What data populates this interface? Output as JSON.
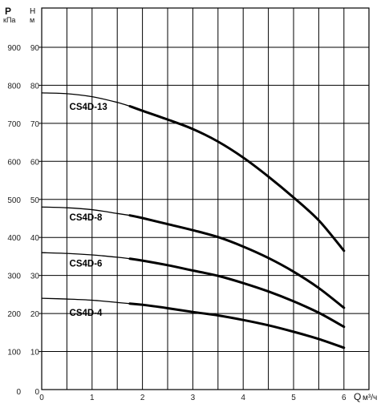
{
  "chart_data": {
    "type": "line",
    "xlabel": "Q",
    "xlabel_unit": "м³/ч",
    "y_left_label": "P",
    "y_left_unit": "кПа",
    "y_right_label": "Н",
    "y_right_unit": "м",
    "xlim": [
      0,
      6.5
    ],
    "ylim_head": [
      0,
      100
    ],
    "ylim_pressure": [
      0,
      1000
    ],
    "x_ticks": [
      "0",
      "1",
      "2",
      "3",
      "4",
      "5",
      "6"
    ],
    "y_head_ticks": [
      "10",
      "20",
      "30",
      "40",
      "50",
      "60",
      "70",
      "80",
      "90"
    ],
    "y_pressure_ticks": [
      "100",
      "200",
      "300",
      "400",
      "500",
      "600",
      "700",
      "800",
      "900"
    ],
    "grid": true,
    "series": [
      {
        "name": "CS4D-13",
        "x": [
          0,
          0.5,
          1,
          1.5,
          1.75,
          2,
          2.5,
          3,
          3.5,
          4,
          4.5,
          5,
          5.5,
          6
        ],
        "y": [
          78,
          77.8,
          77,
          75.5,
          74.5,
          73.3,
          71,
          68.5,
          65.2,
          61,
          56,
          50.5,
          44.5,
          36.5
        ],
        "thin_until_x": 1.75
      },
      {
        "name": "CS4D-8",
        "x": [
          0,
          0.5,
          1,
          1.5,
          1.75,
          2,
          2.5,
          3,
          3.5,
          4,
          4.5,
          5,
          5.5,
          6
        ],
        "y": [
          48,
          47.8,
          47.3,
          46.3,
          45.8,
          45.1,
          43.5,
          41.9,
          40.1,
          37.6,
          34.6,
          31,
          26.7,
          21.5
        ],
        "thin_until_x": 1.75
      },
      {
        "name": "CS4D-6",
        "x": [
          0,
          0.5,
          1,
          1.5,
          1.75,
          2,
          2.5,
          3,
          3.5,
          4,
          4.5,
          5,
          5.5,
          6
        ],
        "y": [
          36,
          35.8,
          35.4,
          34.8,
          34.4,
          33.9,
          32.7,
          31.3,
          29.9,
          28,
          25.8,
          23.2,
          20.2,
          16.5
        ],
        "thin_until_x": 1.75
      },
      {
        "name": "CS4D-4",
        "x": [
          0,
          0.5,
          1,
          1.5,
          1.75,
          2,
          2.5,
          3,
          3.5,
          4,
          4.5,
          5,
          5.5,
          6
        ],
        "y": [
          24,
          23.8,
          23.5,
          22.9,
          22.6,
          22.3,
          21.4,
          20.4,
          19.5,
          18.3,
          16.9,
          15.2,
          13.3,
          11
        ],
        "thin_until_x": 1.75
      }
    ],
    "annotations": [
      {
        "text": "CS4D-13",
        "x": 0.55,
        "y": 73.5
      },
      {
        "text": "CS4D-8",
        "x": 0.55,
        "y": 44.5
      },
      {
        "text": "CS4D-6",
        "x": 0.55,
        "y": 32.3
      },
      {
        "text": "CS4D-4",
        "x": 0.55,
        "y": 19.4
      }
    ]
  },
  "colors": {
    "line": "#000000",
    "grid": "#000000",
    "background": "#ffffff"
  }
}
